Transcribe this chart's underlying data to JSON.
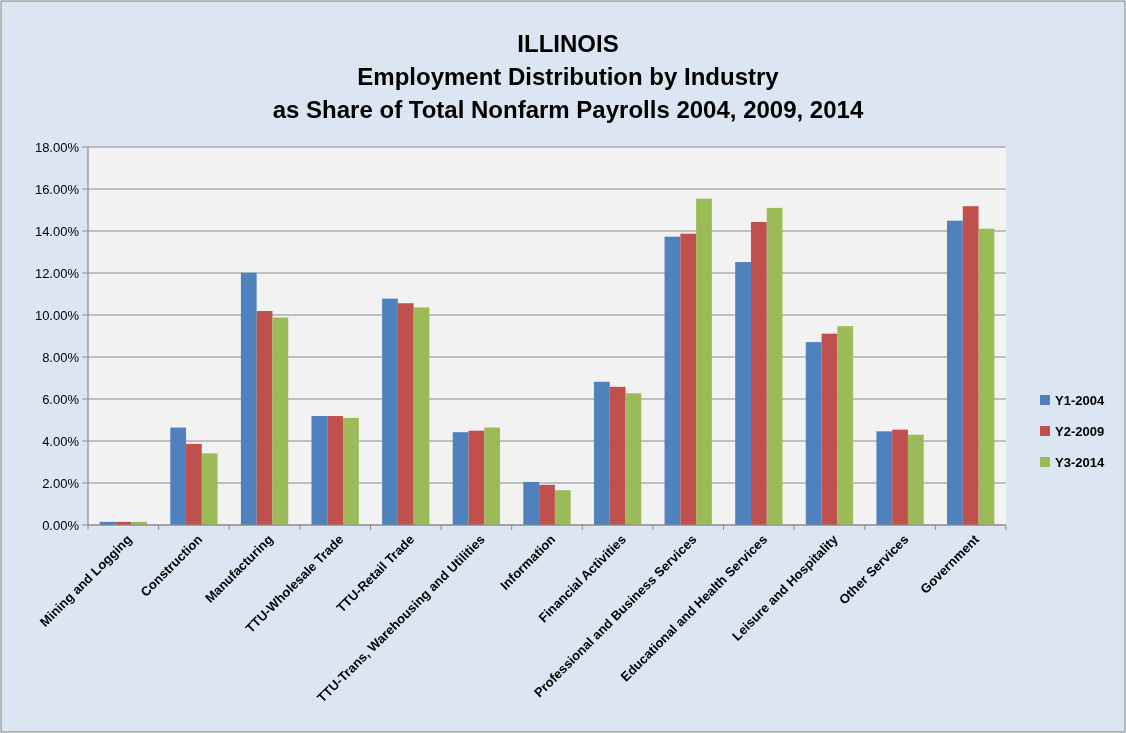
{
  "chart_data": {
    "type": "bar",
    "title": "ILLINOIS\nEmployment Distribution by Industry\nas Share of Total Nonfarm Payrolls 2004, 2009, 2014",
    "categories": [
      "Mining and Logging",
      "Construction",
      "Manufacturing",
      "TTU-Wholesale Trade",
      "TTU-Retail Trade",
      "TTU-Trans, Warehousing and Utilities",
      "Information",
      "Financial Activities",
      "Professional and Business Services",
      "Educational and Health Services",
      "Leisure and Hospitality",
      "Other Services",
      "Government"
    ],
    "series": [
      {
        "name": "Y1-2004",
        "color": "#4f81bd",
        "values": [
          0.15,
          4.64,
          12.01,
          5.19,
          10.78,
          4.42,
          2.05,
          6.82,
          13.73,
          12.52,
          8.71,
          4.46,
          14.49
        ]
      },
      {
        "name": "Y2-2009",
        "color": "#c0504d",
        "values": [
          0.15,
          3.86,
          10.19,
          5.19,
          10.56,
          4.49,
          1.91,
          6.58,
          13.87,
          14.43,
          9.11,
          4.54,
          15.18
        ]
      },
      {
        "name": "Y3-2014",
        "color": "#9bbb59",
        "values": [
          0.15,
          3.41,
          9.88,
          5.1,
          10.36,
          4.64,
          1.66,
          6.27,
          15.54,
          15.1,
          9.47,
          4.3,
          14.11
        ]
      }
    ],
    "ylim": [
      0,
      18
    ],
    "yticks": [
      {
        "value": 0,
        "label": "0.00%"
      },
      {
        "value": 2,
        "label": "2.00%"
      },
      {
        "value": 4,
        "label": "4.00%"
      },
      {
        "value": 6,
        "label": "6.00%"
      },
      {
        "value": 8,
        "label": "8.00%"
      },
      {
        "value": 10,
        "label": "10.00%"
      },
      {
        "value": 12,
        "label": "12.00%"
      },
      {
        "value": 14,
        "label": "14.00%"
      },
      {
        "value": 16,
        "label": "16.00%"
      },
      {
        "value": 18,
        "label": "18.00%"
      }
    ],
    "grid": "y",
    "legend": "right"
  }
}
